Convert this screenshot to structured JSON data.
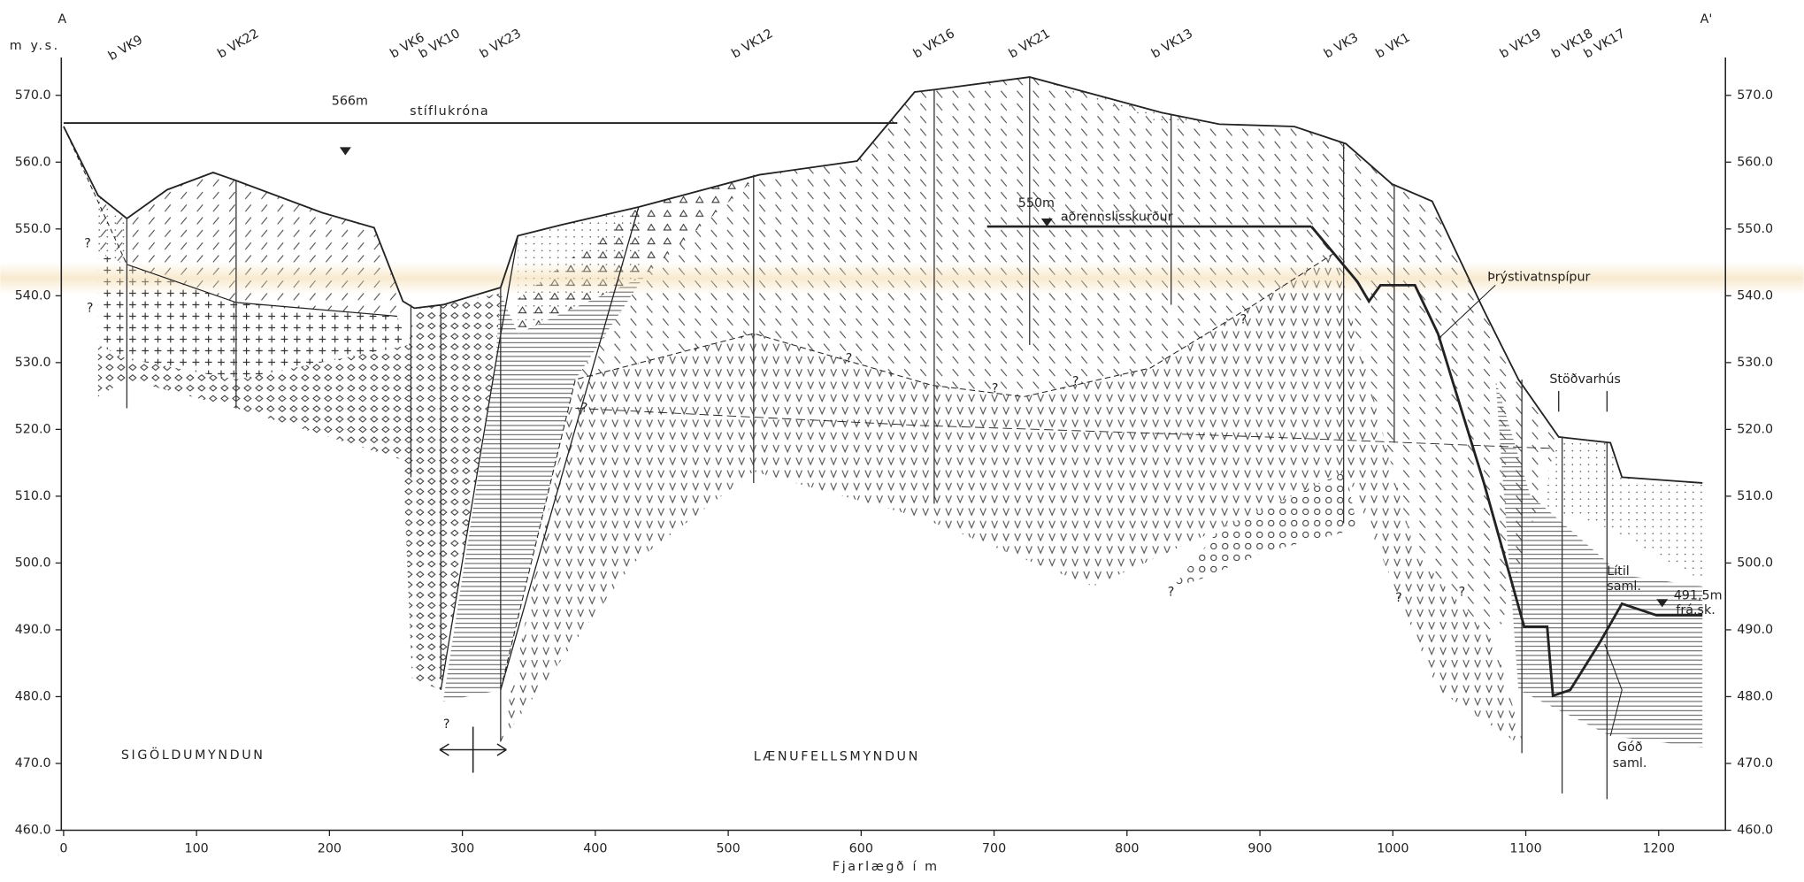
{
  "section": {
    "left_label": "A",
    "right_label": "A'"
  },
  "y_axis": {
    "label": "m y.s.",
    "ticks": [
      {
        "value": 460,
        "label": "460.0"
      },
      {
        "value": 470,
        "label": "470.0"
      },
      {
        "value": 480,
        "label": "480.0"
      },
      {
        "value": 490,
        "label": "490.0"
      },
      {
        "value": 500,
        "label": "500.0"
      },
      {
        "value": 510,
        "label": "510.0"
      },
      {
        "value": 520,
        "label": "520.0"
      },
      {
        "value": 530,
        "label": "530.0"
      },
      {
        "value": 540,
        "label": "540.0"
      },
      {
        "value": 550,
        "label": "550.0"
      },
      {
        "value": 560,
        "label": "560.0"
      },
      {
        "value": 570,
        "label": "570.0"
      }
    ]
  },
  "x_axis": {
    "label": "Fjarlægð í m",
    "ticks": [
      0,
      100,
      200,
      300,
      400,
      500,
      600,
      700,
      800,
      900,
      1000,
      1100,
      1200
    ]
  },
  "boreholes": [
    "b VK9",
    "b VK22",
    "b VK6",
    "b VK10",
    "b VK23",
    "b VK12",
    "b VK16",
    "b VK21",
    "b VK13",
    "b VK3",
    "b VK1",
    "b VK19",
    "b VK18",
    "b VK17"
  ],
  "annotations": {
    "dam_crest_level": "566m",
    "dam_crest": "stíflukróna",
    "canal_level": "550m",
    "canal": "aðrennslisskurður",
    "penstock": "Þrýstivatnspípur",
    "powerhouse": "Stöðvarhús",
    "poor_joint": [
      "Lítil",
      "saml."
    ],
    "tailrace": [
      "491,5m",
      "frá.sk."
    ],
    "good_joint": [
      "Góð",
      "saml."
    ],
    "uncertain": "?"
  },
  "formations": {
    "left": "SIGÖLDUMYNDUN",
    "right": "LÆNUFELLSMYNDUN"
  }
}
